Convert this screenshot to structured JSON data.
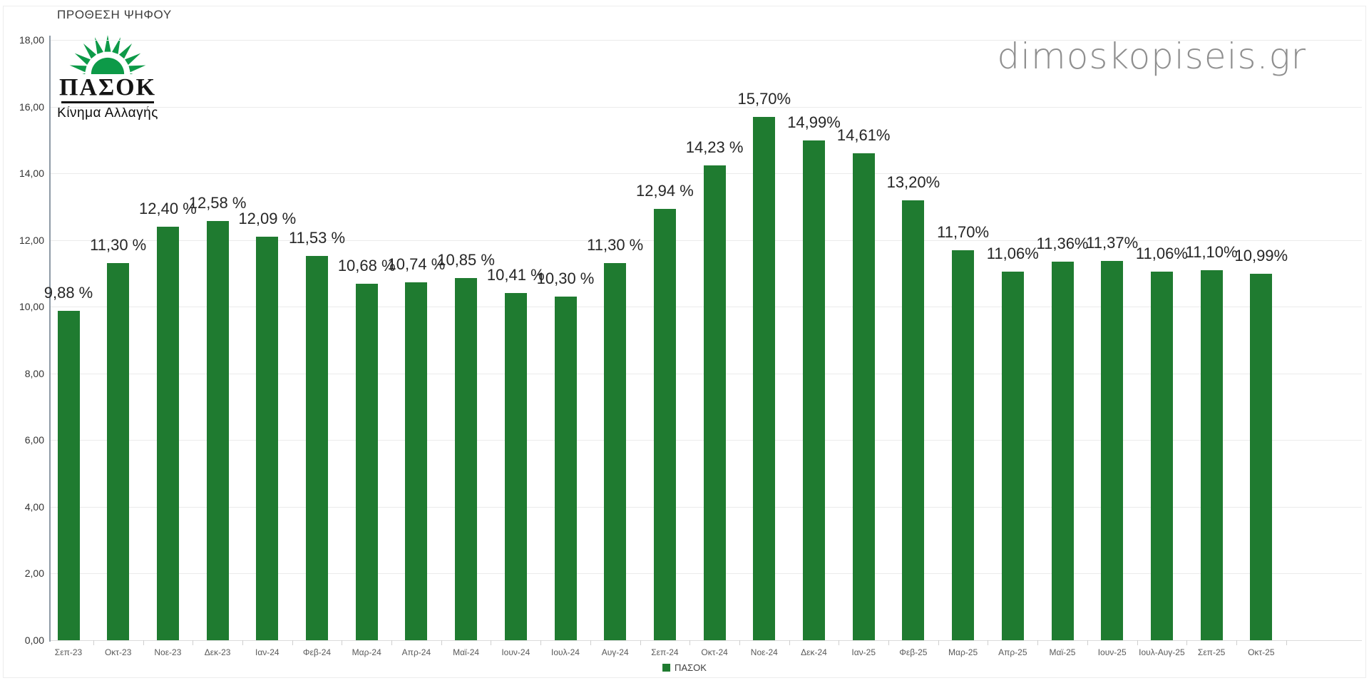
{
  "header": {
    "title": "ΠΡΟΘΕΣΗ ΨΗΦΟΥ",
    "watermark": "dimoskopiseis.gr"
  },
  "logo": {
    "party": "ΠΑΣΟΚ",
    "subtitle": "Κίνημα Αλλαγής"
  },
  "legend": {
    "series": "ΠΑΣΟΚ"
  },
  "colors": {
    "bar_green": "#1f7b30",
    "logo_green": "#0d9a48",
    "watermark_gray": "#8f8f8f",
    "label_text": "#262626",
    "axis_text": "#595959",
    "gridline": "#ebebeb",
    "axis_line": "#8e9aa6"
  },
  "chart_data": {
    "type": "bar",
    "title": "ΠΡΟΘΕΣΗ ΨΗΦΟΥ",
    "series_name": "ΠΑΣΟΚ",
    "categories": [
      "Σεπ-23",
      "Οκτ-23",
      "Νοε-23",
      "Δεκ-23",
      "Ιαν-24",
      "Φεβ-24",
      "Μαρ-24",
      "Απρ-24",
      "Μαϊ-24",
      "Ιουν-24",
      "Ιουλ-24",
      "Αυγ-24",
      "Σεπ-24",
      "Οκτ-24",
      "Νοε-24",
      "Δεκ-24",
      "Ιαν-25",
      "Φεβ-25",
      "Μαρ-25",
      "Απρ-25",
      "Μαϊ-25",
      "Ιουν-25",
      "Ιουλ-Αυγ-25",
      "Σεπ-25",
      "Οκτ-25"
    ],
    "values": [
      9.88,
      11.3,
      12.4,
      12.58,
      12.09,
      11.53,
      10.68,
      10.74,
      10.85,
      10.41,
      10.3,
      11.3,
      12.94,
      14.23,
      15.7,
      14.99,
      14.61,
      13.2,
      11.7,
      11.06,
      11.36,
      11.37,
      11.06,
      11.1,
      10.99
    ],
    "value_labels": [
      "9,88 %",
      "11,30 %",
      "12,40 %",
      "12,58 %",
      "12,09 %",
      "11,53 %",
      "10,68 %",
      "10,74 %",
      "10,85 %",
      "10,41 %",
      "10,30 %",
      "11,30 %",
      "12,94 %",
      "14,23 %",
      "15,70%",
      "14,99%",
      "14,61%",
      "13,20%",
      "11,70%",
      "11,06%",
      "11,36%",
      "11,37%",
      "11,06%",
      "11,10%",
      "10,99%"
    ],
    "ymin": 0,
    "ymax": 18,
    "ytick_values": [
      0,
      2,
      4,
      6,
      8,
      10,
      12,
      14,
      16,
      18
    ],
    "ytick_labels": [
      "0,00",
      "2,00",
      "4,00",
      "6,00",
      "8,00",
      "10,00",
      "12,00",
      "14,00",
      "16,00",
      "18,00"
    ],
    "grid": true,
    "legend_position": "bottom-center",
    "bar_color": "#1f7b30"
  }
}
